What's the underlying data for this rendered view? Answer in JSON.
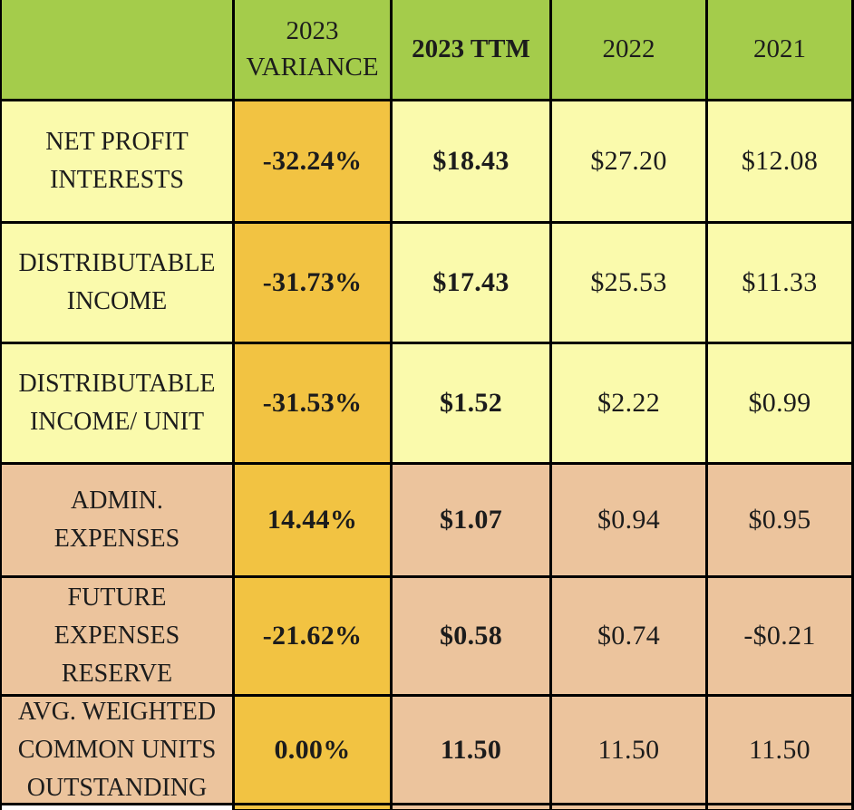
{
  "colors": {
    "header-green": "#A4CC4B",
    "gold": "#F2C342",
    "pale-yellow": "#FAFAAC",
    "peach": "#ECC49D",
    "border-black": "#000000",
    "sliver-white": "#FFFFFF",
    "text": "#1c1c1c"
  },
  "header": {
    "cols": [
      "",
      "2023 VARIANCE",
      "2023 TTM",
      "2022",
      "2021"
    ]
  },
  "rows": [
    {
      "label": "NET PROFIT INTERESTS",
      "variance": "-32.24%",
      "ttm": "$18.43",
      "y2022": "$27.20",
      "y2021": "$12.08"
    },
    {
      "label": "DISTRIBUTABLE INCOME",
      "variance": "-31.73%",
      "ttm": "$17.43",
      "y2022": "$25.53",
      "y2021": "$11.33"
    },
    {
      "label": "DISTRIBUTABLE INCOME/ UNIT",
      "variance": "-31.53%",
      "ttm": "$1.52",
      "y2022": "$2.22",
      "y2021": "$0.99"
    },
    {
      "label": "ADMIN. EXPENSES",
      "variance": "14.44%",
      "ttm": "$1.07",
      "y2022": "$0.94",
      "y2021": "$0.95"
    },
    {
      "label": "FUTURE EXPENSES RESERVE",
      "variance": "-21.62%",
      "ttm": "$0.58",
      "y2022": "$0.74",
      "y2021": "-$0.21"
    },
    {
      "label": "AVG. WEIGHTED COMMON UNITS OUTSTANDING",
      "variance": "0.00%",
      "ttm": "11.50",
      "y2022": "11.50",
      "y2021": "11.50"
    }
  ],
  "chart_data": {
    "type": "table",
    "title": "",
    "columns": [
      "",
      "2023 VARIANCE",
      "2023 TTM",
      "2022",
      "2021"
    ],
    "rows": [
      [
        "NET PROFIT INTERESTS",
        "-32.24%",
        "$18.43",
        "$27.20",
        "$12.08"
      ],
      [
        "DISTRIBUTABLE INCOME",
        "-31.73%",
        "$17.43",
        "$25.53",
        "$11.33"
      ],
      [
        "DISTRIBUTABLE INCOME/ UNIT",
        "-31.53%",
        "$1.52",
        "$2.22",
        "$0.99"
      ],
      [
        "ADMIN. EXPENSES",
        "14.44%",
        "$1.07",
        "$0.94",
        "$0.95"
      ],
      [
        "FUTURE EXPENSES RESERVE",
        "-21.62%",
        "$0.58",
        "$0.74",
        "-$0.21"
      ],
      [
        "AVG. WEIGHTED COMMON UNITS OUTSTANDING",
        "0.00%",
        "11.50",
        "11.50",
        "11.50"
      ]
    ],
    "numeric_values": {
      "variance_pct": [
        -32.24,
        -31.73,
        -31.53,
        14.44,
        -21.62,
        0.0
      ],
      "ttm_2023": [
        18.43,
        17.43,
        1.52,
        1.07,
        0.58,
        11.5
      ],
      "y2022": [
        27.2,
        25.53,
        2.22,
        0.94,
        0.74,
        11.5
      ],
      "y2021": [
        12.08,
        11.33,
        0.99,
        0.95,
        -0.21,
        11.5
      ]
    },
    "layout_hints": {
      "grid": true,
      "header_fill": "#A4CC4B",
      "income_rows_fill": "#FAFAAC",
      "expense_rows_fill": "#ECC49D",
      "variance_column_fill": "#F2C342",
      "bold_columns": [
        "2023 VARIANCE",
        "2023 TTM"
      ]
    }
  }
}
